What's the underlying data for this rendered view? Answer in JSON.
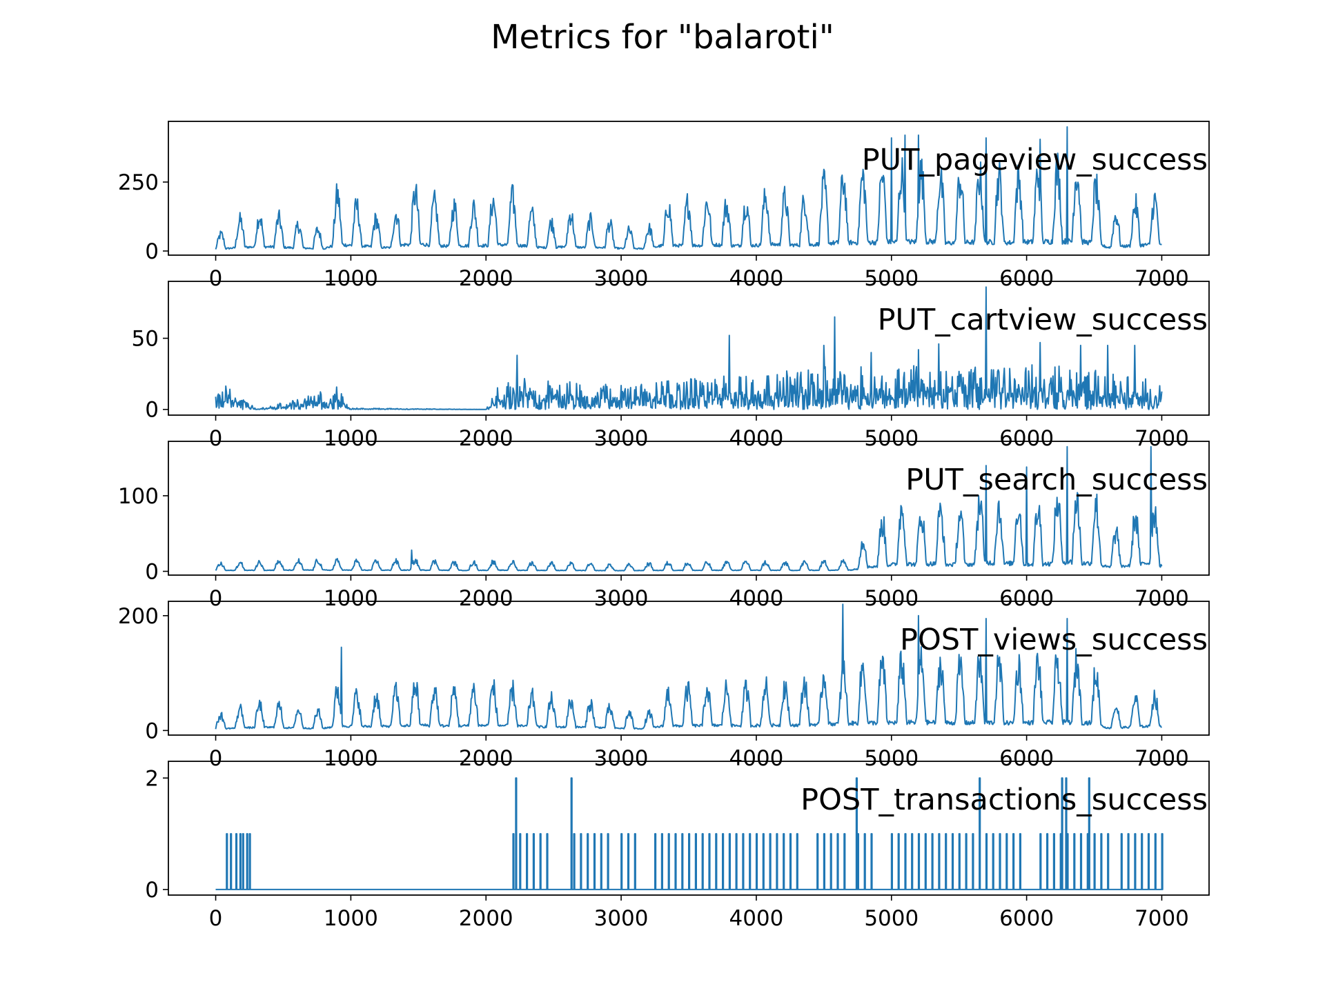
{
  "chart_data": {
    "type": "line",
    "title": "Metrics for \"balaroti\"",
    "grid": false,
    "sharex": true,
    "xlim": [
      -350,
      7350
    ],
    "xticks": [
      0,
      1000,
      2000,
      3000,
      4000,
      5000,
      6000,
      7000
    ],
    "x_range": [
      0,
      7000
    ],
    "color": "#1f77b4",
    "series": [
      {
        "name": "PUT_pageview_success",
        "ylim": [
          -15,
          470
        ],
        "yticks": [
          0,
          250
        ],
        "points": [
          [
            0,
            60
          ],
          [
            200,
            150
          ],
          [
            400,
            165
          ],
          [
            600,
            120
          ],
          [
            800,
            90
          ],
          [
            900,
            260
          ],
          [
            1000,
            220
          ],
          [
            1100,
            190
          ],
          [
            1200,
            140
          ],
          [
            1300,
            130
          ],
          [
            1400,
            250
          ],
          [
            1500,
            270
          ],
          [
            1600,
            230
          ],
          [
            1700,
            190
          ],
          [
            1800,
            210
          ],
          [
            1900,
            200
          ],
          [
            2000,
            215
          ],
          [
            2100,
            240
          ],
          [
            2200,
            245
          ],
          [
            2300,
            190
          ],
          [
            2400,
            140
          ],
          [
            2500,
            130
          ],
          [
            2600,
            180
          ],
          [
            2700,
            140
          ],
          [
            2800,
            140
          ],
          [
            2900,
            130
          ],
          [
            3000,
            100
          ],
          [
            3100,
            90
          ],
          [
            3200,
            95
          ],
          [
            3300,
            210
          ],
          [
            3400,
            210
          ],
          [
            3500,
            220
          ],
          [
            3600,
            215
          ],
          [
            3700,
            245
          ],
          [
            3800,
            200
          ],
          [
            3900,
            220
          ],
          [
            4000,
            220
          ],
          [
            4100,
            260
          ],
          [
            4200,
            245
          ],
          [
            4300,
            230
          ],
          [
            4400,
            235
          ],
          [
            4500,
            300
          ],
          [
            4600,
            320
          ],
          [
            4700,
            330
          ],
          [
            4800,
            340
          ],
          [
            4900,
            340
          ],
          [
            5000,
            350
          ],
          [
            5100,
            360
          ],
          [
            5200,
            360
          ],
          [
            5300,
            370
          ],
          [
            5400,
            300
          ],
          [
            5500,
            330
          ],
          [
            5600,
            340
          ],
          [
            5700,
            350
          ],
          [
            5800,
            340
          ],
          [
            5900,
            320
          ],
          [
            6000,
            350
          ],
          [
            6100,
            360
          ],
          [
            6200,
            370
          ],
          [
            6300,
            380
          ],
          [
            6400,
            360
          ],
          [
            6500,
            320
          ],
          [
            6600,
            140
          ],
          [
            6700,
            180
          ],
          [
            6800,
            210
          ],
          [
            6900,
            250
          ],
          [
            7000,
            220
          ]
        ],
        "peaks": [
          [
            5200,
            420
          ],
          [
            5700,
            410
          ],
          [
            6300,
            450
          ],
          [
            5000,
            410
          ],
          [
            6100,
            405
          ],
          [
            5100,
            420
          ]
        ]
      },
      {
        "name": "PUT_cartview_success",
        "ylim": [
          -4,
          90
        ],
        "yticks": [
          0,
          50
        ],
        "points": [
          [
            0,
            12
          ],
          [
            100,
            18
          ],
          [
            200,
            14
          ],
          [
            250,
            10
          ],
          [
            300,
            0
          ],
          [
            900,
            16
          ],
          [
            1000,
            1
          ],
          [
            2000,
            0
          ],
          [
            2100,
            18
          ],
          [
            2300,
            22
          ],
          [
            2500,
            20
          ],
          [
            2700,
            20
          ],
          [
            2900,
            18
          ],
          [
            3100,
            17
          ],
          [
            3300,
            20
          ],
          [
            3500,
            22
          ],
          [
            3700,
            24
          ],
          [
            3900,
            25
          ],
          [
            4100,
            26
          ],
          [
            4300,
            28
          ],
          [
            4500,
            30
          ],
          [
            4700,
            30
          ],
          [
            4900,
            30
          ],
          [
            5100,
            32
          ],
          [
            5300,
            30
          ],
          [
            5500,
            32
          ],
          [
            5700,
            30
          ],
          [
            5900,
            30
          ],
          [
            6100,
            32
          ],
          [
            6300,
            30
          ],
          [
            6500,
            28
          ],
          [
            6700,
            24
          ],
          [
            6900,
            22
          ],
          [
            7000,
            18
          ]
        ],
        "peaks": [
          [
            2230,
            38
          ],
          [
            3800,
            52
          ],
          [
            4500,
            45
          ],
          [
            4580,
            65
          ],
          [
            4850,
            40
          ],
          [
            5200,
            42
          ],
          [
            5350,
            46
          ],
          [
            5700,
            86
          ],
          [
            6100,
            47
          ],
          [
            6400,
            45
          ],
          [
            6600,
            45
          ],
          [
            6800,
            45
          ]
        ]
      },
      {
        "name": "PUT_search_success",
        "ylim": [
          -5,
          172
        ],
        "yticks": [
          0,
          100
        ],
        "points": [
          [
            0,
            12
          ],
          [
            400,
            16
          ],
          [
            800,
            18
          ],
          [
            1200,
            16
          ],
          [
            1500,
            18
          ],
          [
            1800,
            14
          ],
          [
            2100,
            16
          ],
          [
            2400,
            14
          ],
          [
            2700,
            12
          ],
          [
            3000,
            10
          ],
          [
            3300,
            14
          ],
          [
            3600,
            14
          ],
          [
            3900,
            16
          ],
          [
            4200,
            14
          ],
          [
            4500,
            16
          ],
          [
            4700,
            18
          ],
          [
            4800,
            55
          ],
          [
            4900,
            75
          ],
          [
            5000,
            95
          ],
          [
            5100,
            110
          ],
          [
            5200,
            95
          ],
          [
            5300,
            110
          ],
          [
            5400,
            95
          ],
          [
            5500,
            95
          ],
          [
            5600,
            100
          ],
          [
            5700,
            130
          ],
          [
            5800,
            105
          ],
          [
            5900,
            115
          ],
          [
            6000,
            100
          ],
          [
            6100,
            105
          ],
          [
            6200,
            110
          ],
          [
            6300,
            140
          ],
          [
            6400,
            110
          ],
          [
            6500,
            120
          ],
          [
            6600,
            60
          ],
          [
            6700,
            70
          ],
          [
            6800,
            90
          ],
          [
            6900,
            120
          ],
          [
            7000,
            80
          ]
        ],
        "peaks": [
          [
            1450,
            28
          ],
          [
            6300,
            165
          ],
          [
            6920,
            165
          ],
          [
            5700,
            140
          ],
          [
            6000,
            138
          ]
        ]
      },
      {
        "name": "POST_views_success",
        "ylim": [
          -8,
          225
        ],
        "yticks": [
          0,
          200
        ],
        "points": [
          [
            0,
            30
          ],
          [
            200,
            50
          ],
          [
            400,
            60
          ],
          [
            600,
            45
          ],
          [
            800,
            40
          ],
          [
            900,
            90
          ],
          [
            1000,
            80
          ],
          [
            1200,
            75
          ],
          [
            1400,
            90
          ],
          [
            1500,
            105
          ],
          [
            1600,
            90
          ],
          [
            1800,
            85
          ],
          [
            2000,
            95
          ],
          [
            2100,
            95
          ],
          [
            2200,
            90
          ],
          [
            2400,
            70
          ],
          [
            2600,
            65
          ],
          [
            2800,
            60
          ],
          [
            3000,
            40
          ],
          [
            3200,
            35
          ],
          [
            3300,
            80
          ],
          [
            3500,
            90
          ],
          [
            3700,
            95
          ],
          [
            3900,
            90
          ],
          [
            4100,
            100
          ],
          [
            4300,
            100
          ],
          [
            4500,
            120
          ],
          [
            4700,
            135
          ],
          [
            4900,
            145
          ],
          [
            5100,
            150
          ],
          [
            5300,
            150
          ],
          [
            5500,
            140
          ],
          [
            5700,
            150
          ],
          [
            5900,
            140
          ],
          [
            6100,
            150
          ],
          [
            6300,
            155
          ],
          [
            6500,
            140
          ],
          [
            6600,
            45
          ],
          [
            6700,
            55
          ],
          [
            6800,
            70
          ],
          [
            6900,
            80
          ],
          [
            7000,
            70
          ]
        ],
        "peaks": [
          [
            930,
            145
          ],
          [
            4640,
            220
          ],
          [
            5200,
            200
          ],
          [
            5700,
            195
          ],
          [
            6300,
            195
          ]
        ]
      },
      {
        "name": "POST_transactions_success",
        "ylim": [
          -0.1,
          2.3
        ],
        "yticks": [
          0,
          2
        ],
        "step_spikes": [
          80,
          110,
          150,
          180,
          200,
          230,
          250,
          2200,
          2250,
          2300,
          2350,
          2400,
          2450,
          2650,
          2700,
          2750,
          2800,
          2850,
          2900,
          3000,
          3050,
          3100,
          3250,
          3300,
          3350,
          3400,
          3450,
          3500,
          3550,
          3600,
          3650,
          3700,
          3750,
          3800,
          3850,
          3900,
          3950,
          4000,
          4050,
          4100,
          4150,
          4200,
          4250,
          4300,
          4450,
          4500,
          4550,
          4600,
          4650,
          4750,
          4800,
          4850,
          5000,
          5050,
          5100,
          5150,
          5200,
          5250,
          5300,
          5350,
          5400,
          5450,
          5500,
          5550,
          5600,
          5700,
          5750,
          5800,
          5850,
          5900,
          5950,
          6100,
          6150,
          6200,
          6250,
          6300,
          6350,
          6400,
          6450,
          6500,
          6550,
          6600,
          6700,
          6750,
          6800,
          6850,
          6900,
          6950,
          7000
        ],
        "double_spikes": [
          2220,
          2630,
          4740,
          5650,
          6260,
          6290,
          6460
        ]
      }
    ]
  }
}
